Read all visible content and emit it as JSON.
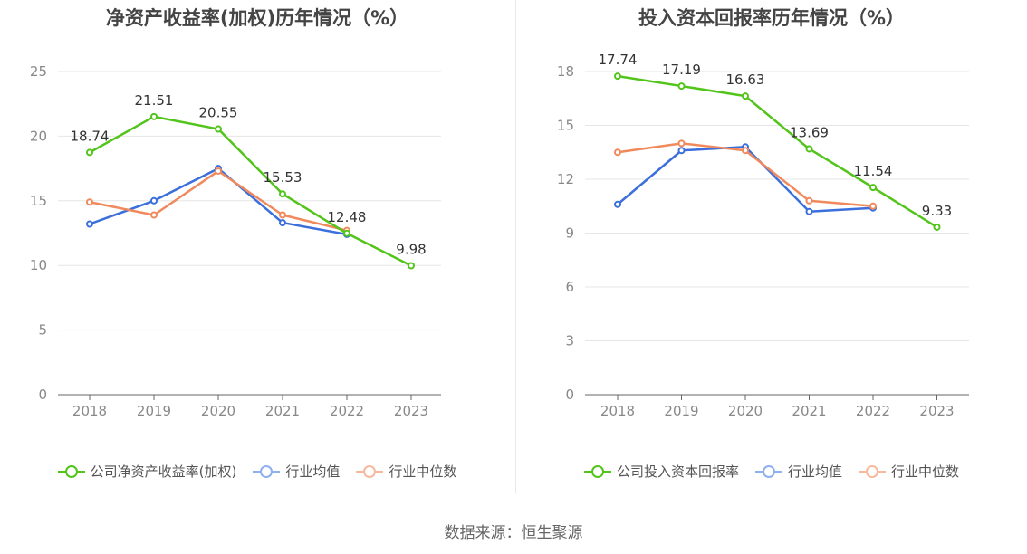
{
  "source_label": "数据来源：恒生聚源",
  "colors": {
    "company": "#52c41a",
    "industry_avg": "#3a6fdc",
    "industry_median": "#f08a5d",
    "axis": "#666666",
    "grid": "#e6e6e6",
    "tick": "#888888"
  },
  "chart_data": [
    {
      "type": "line",
      "title": "净资产收益率(加权)历年情况（%）",
      "categories": [
        "2018",
        "2019",
        "2020",
        "2021",
        "2022",
        "2023"
      ],
      "ylim": [
        0,
        25
      ],
      "yticks": [
        0,
        5,
        10,
        15,
        20,
        25
      ],
      "grid": true,
      "legend_position": "bottom",
      "series": [
        {
          "name": "公司净资产收益率(加权)",
          "key": "company",
          "values": [
            18.74,
            21.51,
            20.55,
            15.53,
            12.48,
            9.98
          ],
          "labels": [
            "18.74",
            "21.51",
            "20.55",
            "15.53",
            "12.48",
            "9.98"
          ]
        },
        {
          "name": "行业均值",
          "key": "industry_avg",
          "values": [
            13.2,
            15.0,
            17.5,
            13.3,
            12.4,
            null
          ]
        },
        {
          "name": "行业中位数",
          "key": "industry_median",
          "values": [
            14.9,
            13.9,
            17.3,
            13.9,
            12.7,
            null
          ]
        }
      ]
    },
    {
      "type": "line",
      "title": "投入资本回报率历年情况（%）",
      "categories": [
        "2018",
        "2019",
        "2020",
        "2021",
        "2022",
        "2023"
      ],
      "ylim": [
        0,
        18
      ],
      "yticks": [
        0,
        3,
        6,
        9,
        12,
        15,
        18
      ],
      "grid": true,
      "legend_position": "bottom",
      "series": [
        {
          "name": "公司投入资本回报率",
          "key": "company",
          "values": [
            17.74,
            17.19,
            16.63,
            13.69,
            11.54,
            9.33
          ],
          "labels": [
            "17.74",
            "17.19",
            "16.63",
            "13.69",
            "11.54",
            "9.33"
          ]
        },
        {
          "name": "行业均值",
          "key": "industry_avg",
          "values": [
            10.6,
            13.6,
            13.8,
            10.2,
            10.4,
            null
          ]
        },
        {
          "name": "行业中位数",
          "key": "industry_median",
          "values": [
            13.5,
            14.0,
            13.6,
            10.8,
            10.5,
            null
          ]
        }
      ]
    }
  ]
}
